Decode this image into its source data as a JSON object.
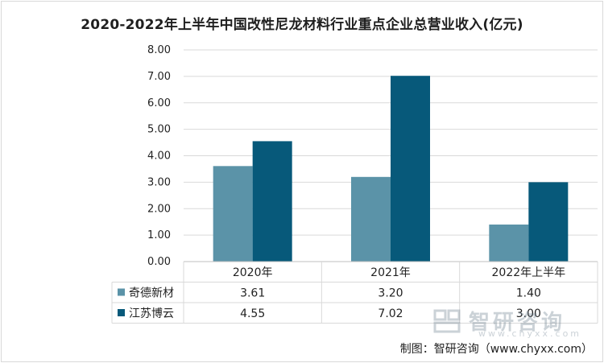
{
  "chart_data": {
    "type": "bar",
    "title": "2020-2022年上半年中国改性尼龙材料行业重点企业总营业收入(亿元)",
    "categories": [
      "2020年",
      "2021年",
      "2022年上半年"
    ],
    "series": [
      {
        "name": "奇德新材",
        "values": [
          3.61,
          3.2,
          1.4
        ],
        "color": "#5b93a8"
      },
      {
        "name": "江苏博云",
        "values": [
          4.55,
          7.02,
          3.0
        ],
        "color": "#07597a"
      }
    ],
    "value_labels": [
      [
        "3.61",
        "3.20",
        "1.40"
      ],
      [
        "4.55",
        "7.02",
        "3.00"
      ]
    ],
    "ylim": [
      0,
      8
    ],
    "yticks": [
      "0.00",
      "1.00",
      "2.00",
      "3.00",
      "4.00",
      "5.00",
      "6.00",
      "7.00",
      "8.00"
    ],
    "grid": true,
    "legend": "data-table"
  },
  "footer": "制图：智研咨询（www.chyxx.com）",
  "watermark": {
    "text": "智研咨询",
    "sub": "www.chyxx.com"
  }
}
